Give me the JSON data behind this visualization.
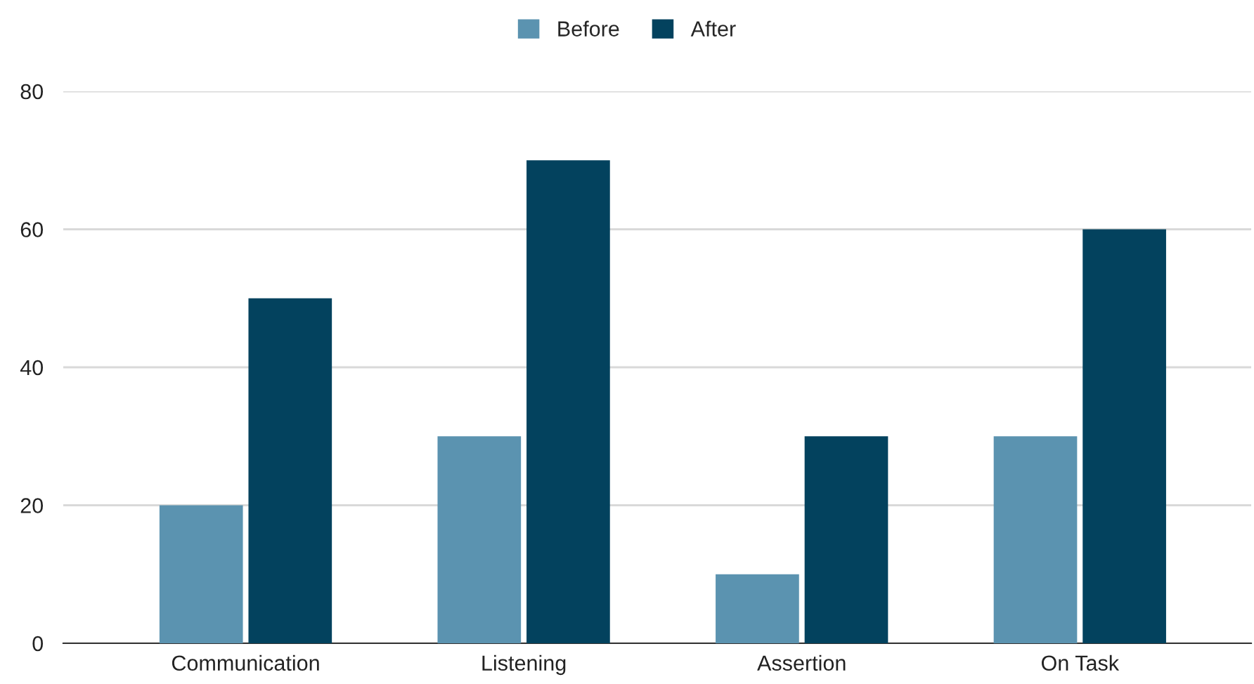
{
  "chart_data": {
    "type": "bar",
    "categories": [
      "Communication",
      "Listening",
      "Assertion",
      "On Task"
    ],
    "series": [
      {
        "name": "Before",
        "color": "#5b93b0",
        "values": [
          20,
          30,
          10,
          30
        ]
      },
      {
        "name": "After",
        "color": "#03425e",
        "values": [
          50,
          70,
          30,
          60
        ]
      }
    ],
    "ylim": [
      0,
      80
    ],
    "yticks": [
      0,
      20,
      40,
      60,
      80
    ],
    "grid": "y",
    "legend": "top"
  }
}
